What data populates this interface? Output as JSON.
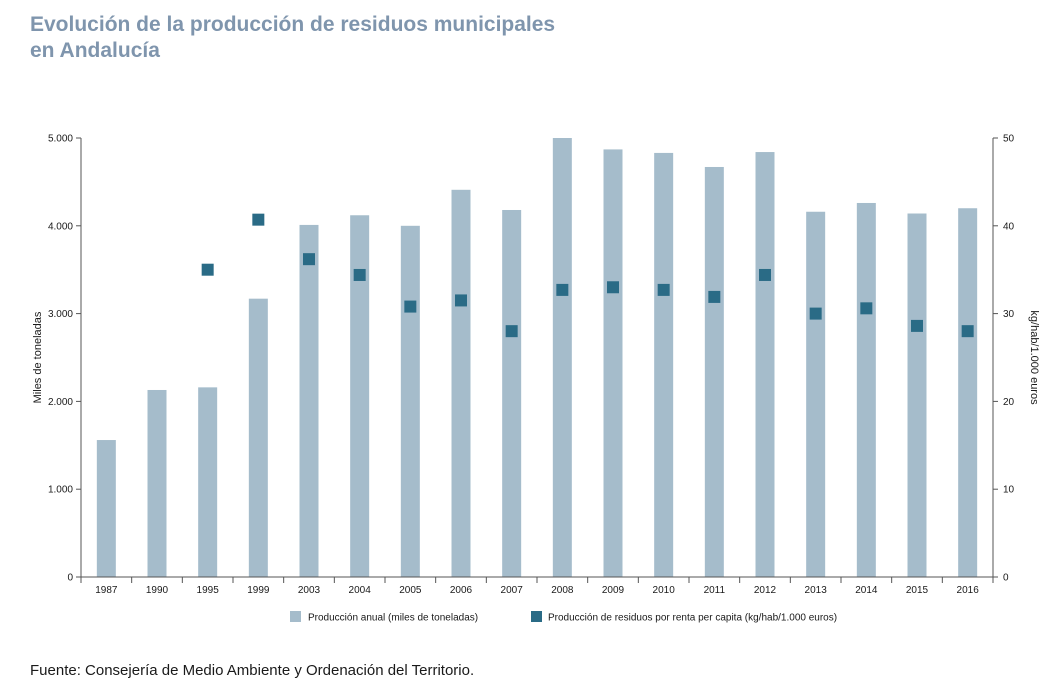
{
  "title": {
    "line1": "Evolución de la producción de residuos municipales",
    "line2": "en Andalucía"
  },
  "chart_data": {
    "type": "bar",
    "categories": [
      "1987",
      "1990",
      "1995",
      "1999",
      "2003",
      "2004",
      "2005",
      "2006",
      "2007",
      "2008",
      "2009",
      "2010",
      "2011",
      "2012",
      "2013",
      "2014",
      "2015",
      "2016"
    ],
    "series": [
      {
        "name": "Producción anual (miles de toneladas)",
        "type": "bar",
        "axis": "left",
        "color": "#a5bccb",
        "values": [
          1560,
          2130,
          2160,
          3170,
          4010,
          4120,
          4000,
          4410,
          4180,
          5000,
          4870,
          4830,
          4670,
          4840,
          4160,
          4260,
          4140,
          4200
        ]
      },
      {
        "name": "Producción de residuos por renta per capita (kg/hab/1.000 euros)",
        "type": "scatter",
        "marker": "square",
        "axis": "right",
        "color": "#2a6b86",
        "values": [
          null,
          null,
          35.0,
          40.7,
          36.2,
          34.4,
          30.8,
          31.5,
          28.0,
          32.7,
          33.0,
          32.7,
          31.9,
          34.4,
          30.0,
          30.6,
          28.6,
          28.0
        ]
      }
    ],
    "ylabel_left": "Miles de toneladas",
    "ylabel_right": "kg/hab/1.000 euros",
    "ylim_left": [
      0,
      5000
    ],
    "ylim_right": [
      0,
      50
    ],
    "yticks_left": [
      "0",
      "1.000",
      "2.000",
      "3.000",
      "4.000",
      "5.000"
    ],
    "yticks_right": [
      "0",
      "10",
      "20",
      "30",
      "40",
      "50"
    ],
    "grid": false,
    "legend_position": "bottom"
  },
  "source": "Fuente: Consejería de Medio Ambiente y Ordenación del Territorio."
}
